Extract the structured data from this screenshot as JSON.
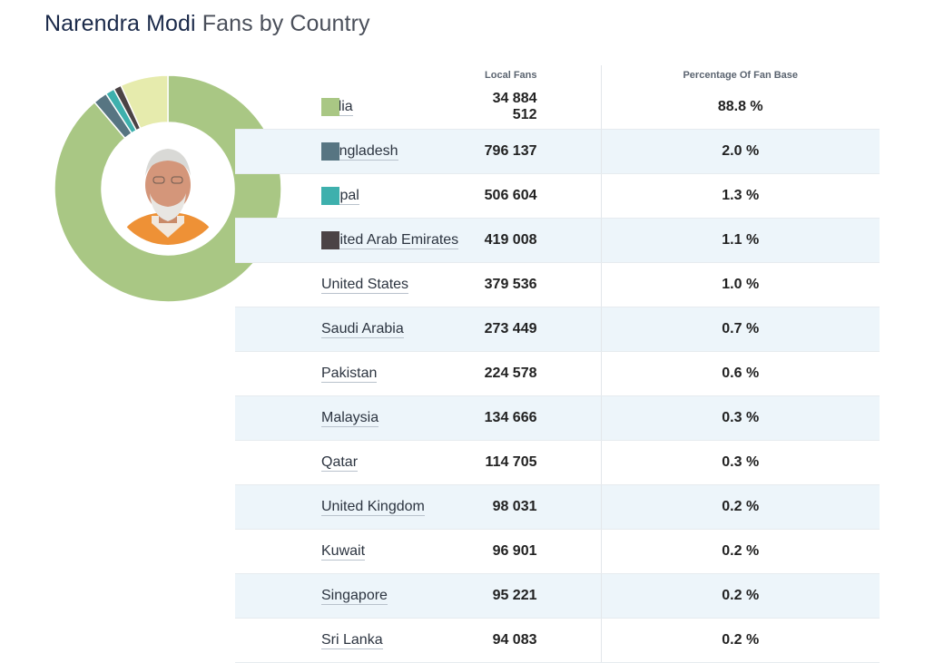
{
  "title": {
    "name": "Narendra Modi",
    "suffix": "Fans by Country"
  },
  "table": {
    "headers": {
      "fans": "Local Fans",
      "pct": "Percentage Of Fan Base"
    },
    "rows": [
      {
        "country": "India",
        "fans": "34 884 512",
        "pct": "88.8 %",
        "color": "#a9c784"
      },
      {
        "country": "Bangladesh",
        "fans": "796 137",
        "pct": "2.0 %",
        "color": "#577582"
      },
      {
        "country": "Nepal",
        "fans": "506 604",
        "pct": "1.3 %",
        "color": "#3eb0ad"
      },
      {
        "country": "United Arab Emirates",
        "fans": "419 008",
        "pct": "1.1 %",
        "color": "#4b4345"
      },
      {
        "country": "United States",
        "fans": "379 536",
        "pct": "1.0 %",
        "color": null
      },
      {
        "country": "Saudi Arabia",
        "fans": "273 449",
        "pct": "0.7 %",
        "color": null
      },
      {
        "country": "Pakistan",
        "fans": "224 578",
        "pct": "0.6 %",
        "color": null
      },
      {
        "country": "Malaysia",
        "fans": "134 666",
        "pct": "0.3 %",
        "color": null
      },
      {
        "country": "Qatar",
        "fans": "114 705",
        "pct": "0.3 %",
        "color": null
      },
      {
        "country": "United Kingdom",
        "fans": "98 031",
        "pct": "0.2 %",
        "color": null
      },
      {
        "country": "Kuwait",
        "fans": "96 901",
        "pct": "0.2 %",
        "color": null
      },
      {
        "country": "Singapore",
        "fans": "95 221",
        "pct": "0.2 %",
        "color": null
      },
      {
        "country": "Sri Lanka",
        "fans": "94 083",
        "pct": "0.2 %",
        "color": null
      }
    ]
  },
  "chart_data": {
    "type": "pie",
    "subtype": "donut",
    "title": "",
    "series": [
      {
        "name": "India",
        "value": 88.8,
        "color": "#a9c784"
      },
      {
        "name": "Bangladesh",
        "value": 2.0,
        "color": "#577582"
      },
      {
        "name": "Nepal",
        "value": 1.3,
        "color": "#3eb0ad"
      },
      {
        "name": "United Arab Emirates",
        "value": 1.1,
        "color": "#4b4345"
      },
      {
        "name": "",
        "value": 6.8,
        "color": "#e6ebad"
      }
    ],
    "start_angle": "top",
    "direction": "clockwise",
    "center": "portrait photo"
  }
}
